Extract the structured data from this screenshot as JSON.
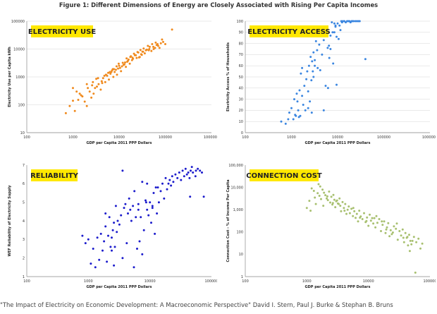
{
  "figure": {
    "title": "Figure 1: Different Dimensions of Energy are Closely Associated with Rising Per Capita Incomes",
    "citation": "\"The Impact of Electricity on Economic Development: A Macroeconomic Perspective\" David I. Stern, Paul J. Burke & Stephan B. Bruns"
  },
  "chart_data": [
    {
      "id": "electricity-use",
      "type": "scatter",
      "badge": "ELECTRICITY USE",
      "xlabel": "GDP per Capita 2011 PPP Dollars",
      "ylabel": "Electricity Use per Capita kWh",
      "xscale": "log",
      "yscale": "log",
      "xlim": [
        100,
        1000000
      ],
      "ylim": [
        10,
        100000
      ],
      "xticks": [
        100,
        1000,
        10000,
        100000,
        1000000
      ],
      "xtick_labels": [
        "100",
        "1000",
        "10000",
        "100000",
        "1000000"
      ],
      "yticks": [
        10,
        100,
        1000,
        10000,
        100000
      ],
      "ytick_labels": [
        "10",
        "100",
        "1000",
        "10000",
        "100000"
      ],
      "grid": true,
      "color": "#F08A1E",
      "x": [
        700,
        850,
        1000,
        1100,
        1300,
        1500,
        1800,
        2000,
        2300,
        2500,
        2800,
        3000,
        3300,
        3600,
        4000,
        4500,
        5000,
        5500,
        6000,
        6500,
        7000,
        7500,
        8000,
        8500,
        9000,
        9500,
        10000,
        11000,
        12000,
        13000,
        14000,
        15000,
        16000,
        17000,
        18000,
        20000,
        22000,
        24000,
        26000,
        28000,
        30000,
        33000,
        36000,
        40000,
        45000,
        50000,
        55000,
        60000,
        65000,
        70000,
        80000,
        90000,
        1200,
        1600,
        2100,
        2700,
        3500,
        4300,
        5200,
        6300,
        7300,
        8800,
        10500,
        12500,
        15500,
        19000,
        23000,
        27000,
        32000,
        38000,
        46000,
        56000,
        68000,
        85000,
        1000,
        1400,
        2000,
        2600,
        3200,
        4800,
        5800,
        7700,
        9800,
        11500,
        14500,
        17500,
        21000,
        25000,
        29000,
        34000,
        42000,
        52000,
        62000,
        75000,
        100000,
        140000,
        4200,
        6800,
        13500,
        19500,
        31000,
        44000
      ],
      "y": [
        50,
        90,
        140,
        60,
        150,
        220,
        130,
        90,
        300,
        180,
        250,
        400,
        450,
        550,
        350,
        900,
        650,
        1100,
        800,
        1300,
        1700,
        1000,
        1500,
        1800,
        1200,
        2000,
        2500,
        1600,
        3200,
        2800,
        2300,
        3500,
        4200,
        3000,
        5500,
        4500,
        6000,
        4800,
        7500,
        5200,
        6500,
        8000,
        7000,
        9500,
        10000,
        8500,
        12000,
        11000,
        14000,
        13000,
        16000,
        18000,
        300,
        200,
        400,
        650,
        900,
        600,
        1200,
        1500,
        1900,
        2400,
        2100,
        2700,
        3800,
        4000,
        6000,
        5000,
        8000,
        9000,
        12000,
        10000,
        15000,
        22000,
        400,
        250,
        550,
        500,
        850,
        1100,
        1400,
        1900,
        3000,
        2400,
        4600,
        5200,
        6800,
        7800,
        9200,
        10500,
        13000,
        15000,
        17000,
        11000,
        15000,
        50000,
        700,
        1500,
        3300,
        4900,
        6200,
        9000
      ]
    },
    {
      "id": "electricity-access",
      "type": "scatter",
      "badge": "ELECTRICITY ACCESS",
      "xlabel": "GDP per Capita 2011 PPP Dollars",
      "ylabel": "Electricity Access % of Households",
      "xscale": "log",
      "yscale": "linear",
      "xlim": [
        100,
        1000000
      ],
      "ylim": [
        0,
        100
      ],
      "xticks": [
        100,
        1000,
        10000,
        100000,
        1000000
      ],
      "xtick_labels": [
        "100",
        "1000",
        "10000",
        "100000",
        "1000000"
      ],
      "yticks": [
        0,
        10,
        20,
        30,
        40,
        50,
        60,
        70,
        80,
        90,
        100
      ],
      "ytick_labels": [
        "0",
        "10",
        "20",
        "30",
        "40",
        "50",
        "60",
        "70",
        "80",
        "90",
        "100"
      ],
      "grid": true,
      "color": "#3B86E0",
      "x": [
        600,
        750,
        850,
        900,
        1000,
        1100,
        1150,
        1200,
        1300,
        1350,
        1400,
        1500,
        1550,
        1600,
        1700,
        1800,
        1900,
        2000,
        2100,
        2200,
        2300,
        2400,
        2500,
        2600,
        2700,
        2800,
        2900,
        3000,
        3200,
        3400,
        3600,
        3800,
        4000,
        4300,
        4600,
        5000,
        5400,
        5800,
        6200,
        6600,
        7000,
        7500,
        8000,
        8500,
        9000,
        9500,
        10000,
        10500,
        11000,
        12000,
        12500,
        13000,
        14000,
        15000,
        16000,
        17000,
        18000,
        19000,
        20000,
        21000,
        22000,
        24000,
        26000,
        28000,
        30000,
        5000,
        7000,
        8500,
        9500,
        11500,
        40000,
        2300,
        3200,
        4200,
        1700,
        1250,
        1450,
        2750,
        3700,
        6100,
        7800,
        9000,
        3000,
        5500,
        6500
      ],
      "y": [
        10,
        8,
        12,
        18,
        22,
        12,
        30,
        16,
        35,
        28,
        20,
        38,
        15,
        53,
        58,
        25,
        42,
        20,
        48,
        55,
        37,
        60,
        28,
        68,
        47,
        64,
        55,
        72,
        65,
        82,
        74,
        88,
        79,
        94,
        70,
        83,
        92,
        95,
        40,
        67,
        87,
        99,
        62,
        90,
        95,
        43,
        98,
        84,
        96,
        100,
        99,
        100,
        100,
        99,
        100,
        100,
        100,
        99,
        100,
        100,
        100,
        100,
        100,
        100,
        100,
        20,
        75,
        98,
        86,
        92,
        66,
        22,
        60,
        56,
        33,
        15,
        14,
        18,
        58,
        76,
        90,
        96,
        50,
        42,
        78
      ]
    },
    {
      "id": "reliability",
      "type": "scatter",
      "badge": "RELIABILITY",
      "xlabel": "GDP per Capita 2011 PPP Dollars",
      "ylabel": "WEF Reliability of Electricity Supply",
      "xscale": "log",
      "yscale": "linear",
      "xlim": [
        100,
        100000
      ],
      "ylim": [
        1,
        7
      ],
      "xticks": [
        100,
        1000,
        10000,
        100000
      ],
      "xtick_labels": [
        "100",
        "1000",
        "10000",
        "100000"
      ],
      "yticks": [
        1,
        2,
        3,
        4,
        5,
        6,
        7
      ],
      "ytick_labels": [
        "1",
        "2",
        "3",
        "4",
        "5",
        "6",
        "7"
      ],
      "grid": false,
      "color": "#1C1CCC",
      "x": [
        800,
        900,
        1000,
        1100,
        1200,
        1300,
        1400,
        1500,
        1600,
        1700,
        1800,
        1900,
        2000,
        2100,
        2200,
        2300,
        2400,
        2500,
        2600,
        2700,
        2800,
        2900,
        3000,
        3200,
        3400,
        3600,
        3800,
        4000,
        4200,
        4400,
        4600,
        4800,
        5000,
        5300,
        5600,
        5900,
        6200,
        6500,
        6800,
        7100,
        7500,
        8000,
        8500,
        9000,
        9500,
        10000,
        10500,
        11000,
        11500,
        12000,
        12500,
        13000,
        14000,
        15000,
        16000,
        17000,
        18000,
        19000,
        20000,
        21000,
        22000,
        23000,
        24000,
        26000,
        28000,
        30000,
        32000,
        34000,
        36000,
        38000,
        40000,
        42000,
        44000,
        46000,
        48000,
        50000,
        55000,
        60000,
        65000,
        70000,
        75000,
        5500,
        6500,
        7500,
        9000,
        3600,
        2400,
        1900,
        2600,
        8700,
        11000,
        13500,
        45000,
        56000
      ],
      "y": [
        3.2,
        2.8,
        3.0,
        1.7,
        2.5,
        1.5,
        3.1,
        1.9,
        3.3,
        2.4,
        2.9,
        3.7,
        1.8,
        3.2,
        4.2,
        2.6,
        2.4,
        3.5,
        3.9,
        2.6,
        4.8,
        3.4,
        4.0,
        3.8,
        4.3,
        2.0,
        4.7,
        4.9,
        2.8,
        4.4,
        5.2,
        4.6,
        4.0,
        4.8,
        5.6,
        4.2,
        2.5,
        4.9,
        2.9,
        4.2,
        2.2,
        3.5,
        5.1,
        4.6,
        4.3,
        5.0,
        3.9,
        4.7,
        5.5,
        3.3,
        5.8,
        4.4,
        5.0,
        5.6,
        6.0,
        5.2,
        6.3,
        5.7,
        6.0,
        6.2,
        5.9,
        6.4,
        6.1,
        6.5,
        6.3,
        6.6,
        6.2,
        6.7,
        6.4,
        6.8,
        6.5,
        6.6,
        6.3,
        6.7,
        6.9,
        6.6,
        6.4,
        6.8,
        6.7,
        6.6,
        5.3,
        1.5,
        4.6,
        6.1,
        6.0,
        6.7,
        3.1,
        4.4,
        1.6,
        5.0,
        4.8,
        5.8,
        5.3,
        6.7
      ]
    },
    {
      "id": "connection-cost",
      "type": "scatter",
      "badge": "CONNECTION COST",
      "xlabel": "GDP per Capita 2011 PPP Dollars",
      "ylabel": "Connection Cost - % of Income Per Capita",
      "xscale": "log",
      "yscale": "log",
      "xlim": [
        100,
        100000
      ],
      "ylim": [
        1,
        100000
      ],
      "xticks": [
        100,
        1000,
        10000,
        100000
      ],
      "xtick_labels": [
        "100",
        "1000",
        "10000",
        "100000"
      ],
      "yticks": [
        1,
        10,
        100,
        1000,
        10000,
        100000
      ],
      "ytick_labels": [
        "1",
        "10",
        "100",
        "1,000",
        "10,000",
        "100,000"
      ],
      "grid": false,
      "color": "#A8C070",
      "x": [
        1000,
        1100,
        1150,
        1200,
        1300,
        1350,
        1400,
        1500,
        1550,
        1600,
        1700,
        1800,
        1850,
        1900,
        2000,
        2100,
        2200,
        2300,
        2400,
        2500,
        2600,
        2700,
        2800,
        2900,
        3000,
        3200,
        3400,
        3500,
        3600,
        3800,
        4000,
        4200,
        4400,
        4600,
        4800,
        5000,
        5300,
        5600,
        5900,
        6200,
        6500,
        6800,
        7100,
        7500,
        8000,
        8500,
        9000,
        9500,
        10000,
        10500,
        11000,
        12000,
        12500,
        13000,
        14000,
        15000,
        16000,
        17000,
        18000,
        19000,
        20000,
        21000,
        22000,
        23000,
        24000,
        26000,
        28000,
        30000,
        32000,
        34000,
        36000,
        38000,
        40000,
        42000,
        44000,
        46000,
        48000,
        50000,
        55000,
        60000,
        65000,
        70000,
        75000,
        3300,
        4100,
        5700,
        7300,
        9300,
        11500,
        2150,
        1650,
        2650,
        3100,
        13500,
        16500,
        19500,
        25000,
        29000,
        37000,
        43000,
        47000,
        52000,
        58000
      ],
      "y": [
        1200,
        2500,
        900,
        9000,
        7000,
        3500,
        1800,
        5500,
        14000,
        4200,
        3000,
        8000,
        1500,
        5800,
        4500,
        3200,
        2700,
        6500,
        2100,
        3800,
        1700,
        4600,
        2800,
        1300,
        2400,
        1900,
        3200,
        1500,
        850,
        2200,
        1200,
        1800,
        650,
        1000,
        1400,
        700,
        1100,
        520,
        850,
        430,
        650,
        300,
        900,
        500,
        380,
        700,
        280,
        450,
        190,
        600,
        320,
        240,
        420,
        160,
        260,
        380,
        110,
        210,
        300,
        90,
        160,
        250,
        65,
        120,
        80,
        180,
        140,
        45,
        110,
        70,
        130,
        35,
        90,
        55,
        25,
        75,
        40,
        28,
        60,
        35,
        50,
        18,
        30,
        1800,
        900,
        1200,
        440,
        310,
        420,
        4000,
        11000,
        2000,
        2600,
        520,
        300,
        130,
        95,
        240,
        55,
        60,
        14,
        40,
        1.5
      ]
    }
  ]
}
